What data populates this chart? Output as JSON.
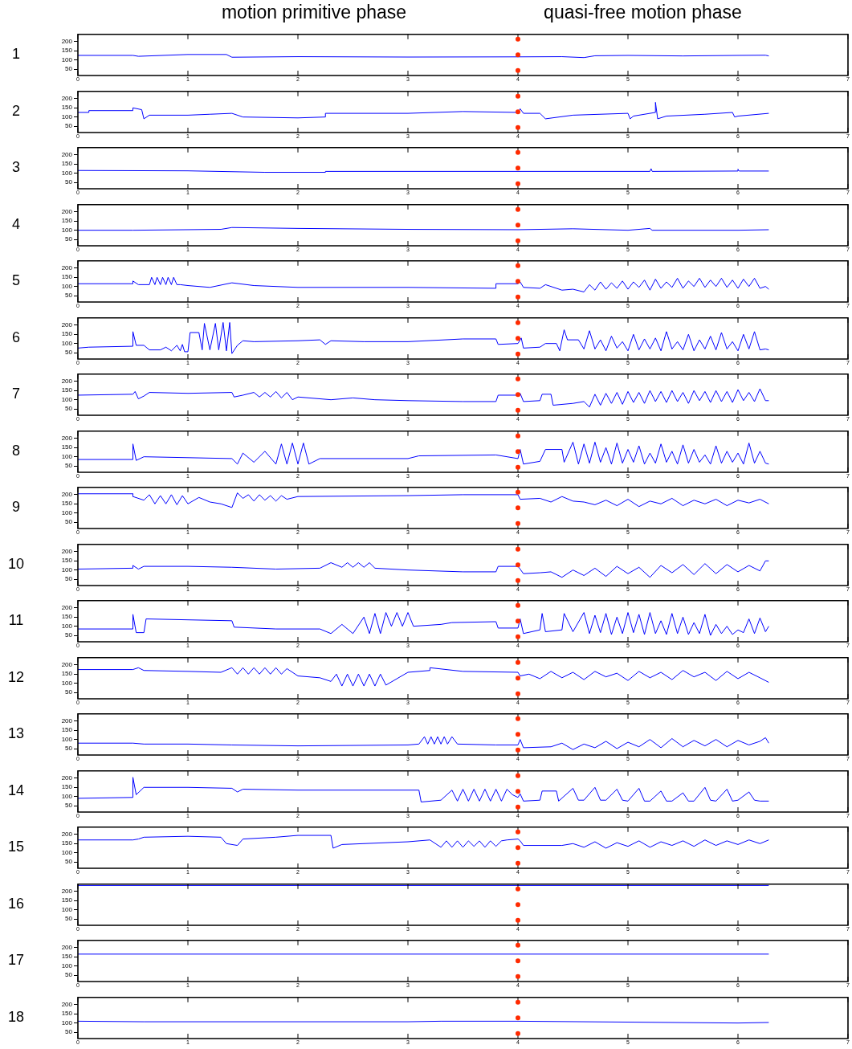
{
  "chart_data": [
    {
      "type": "line",
      "ylabel": "1",
      "annotations": [
        "motion primitive phase",
        "quasi-free motion phase"
      ],
      "color": "#0000ff",
      "x": [
        0,
        0.5,
        0.55,
        1.0,
        1.35,
        1.4,
        2,
        3,
        4,
        4.4,
        4.6,
        4.7,
        5,
        5.5,
        6,
        6.25,
        6.28
      ],
      "values": [
        125,
        125,
        120,
        130,
        130,
        115,
        118,
        116,
        117,
        118,
        113,
        123,
        125,
        122,
        125,
        126,
        122
      ],
      "xlim": [
        0,
        7
      ],
      "ylim": [
        15,
        240
      ],
      "xticks": [
        0,
        1,
        2,
        3,
        4,
        5,
        6,
        7
      ],
      "yticks": [
        50,
        100,
        150,
        200
      ],
      "ref_lines": [
        {
          "axis": "x",
          "value": 4,
          "color": "#ff2a00",
          "line_style": "dotted"
        }
      ]
    },
    {
      "type": "line",
      "ylabel": "2",
      "color": "#0000ff",
      "x": [
        0,
        0.1,
        0.1,
        0.5,
        0.5,
        0.58,
        0.6,
        0.65,
        1.0,
        1.2,
        1.4,
        1.5,
        2,
        2.25,
        2.25,
        3,
        3.5,
        4,
        4.02,
        4.05,
        4.2,
        4.25,
        4.5,
        5,
        5.02,
        5.05,
        5.25,
        5.25,
        5.27,
        5.35,
        5.7,
        5.95,
        5.97,
        6,
        6.28
      ],
      "values": [
        125,
        125,
        135,
        135,
        150,
        140,
        90,
        110,
        110,
        115,
        120,
        100,
        95,
        100,
        120,
        120,
        130,
        125,
        145,
        120,
        120,
        90,
        110,
        120,
        90,
        105,
        125,
        180,
        90,
        105,
        115,
        125,
        100,
        105,
        120
      ],
      "xlim": [
        0,
        7
      ],
      "ylim": [
        15,
        240
      ],
      "xticks": [
        0,
        1,
        2,
        3,
        4,
        5,
        6,
        7
      ],
      "yticks": [
        50,
        100,
        150,
        200
      ],
      "ref_lines": [
        {
          "axis": "x",
          "value": 4,
          "color": "#ff2a00",
          "line_style": "dotted"
        }
      ]
    },
    {
      "type": "line",
      "ylabel": "3",
      "color": "#0000ff",
      "x": [
        0,
        1,
        1.7,
        2.25,
        2.25,
        3,
        4,
        5,
        5.2,
        5.21,
        5.22,
        6,
        6.0,
        6.01,
        6.28
      ],
      "values": [
        115,
        113,
        105,
        105,
        110,
        110,
        110,
        110,
        110,
        125,
        110,
        112,
        122,
        112,
        112
      ],
      "xlim": [
        0,
        7
      ],
      "ylim": [
        15,
        240
      ],
      "xticks": [
        0,
        1,
        2,
        3,
        4,
        5,
        6,
        7
      ],
      "yticks": [
        50,
        100,
        150,
        200
      ],
      "ref_lines": [
        {
          "axis": "x",
          "value": 4,
          "color": "#ff2a00",
          "line_style": "dotted"
        }
      ]
    },
    {
      "type": "line",
      "ylabel": "4",
      "color": "#0000ff",
      "x": [
        0,
        0.5,
        1.3,
        1.4,
        2,
        3,
        4,
        4.5,
        5,
        5.2,
        5.22,
        6,
        6.28
      ],
      "values": [
        100,
        100,
        105,
        115,
        110,
        105,
        103,
        108,
        100,
        110,
        100,
        100,
        103
      ],
      "xlim": [
        0,
        7
      ],
      "ylim": [
        15,
        240
      ],
      "xticks": [
        0,
        1,
        2,
        3,
        4,
        5,
        6,
        7
      ],
      "yticks": [
        50,
        100,
        150,
        200
      ],
      "ref_lines": [
        {
          "axis": "x",
          "value": 4,
          "color": "#ff2a00",
          "line_style": "dotted"
        }
      ]
    },
    {
      "type": "line",
      "ylabel": "5",
      "color": "#0000ff",
      "x": [
        0,
        0.5,
        0.5,
        0.55,
        0.65,
        0.67,
        0.7,
        0.72,
        0.75,
        0.77,
        0.8,
        0.82,
        0.85,
        0.87,
        0.9,
        0.93,
        1.0,
        1.2,
        1.4,
        1.6,
        2,
        3,
        3.8,
        3.8,
        4,
        4.02,
        4.05,
        4.2,
        4.25,
        4.4,
        4.5,
        4.6,
        4.65,
        4.7,
        4.75,
        4.8,
        4.85,
        4.9,
        4.95,
        5.0,
        5.05,
        5.1,
        5.15,
        5.2,
        5.25,
        5.3,
        5.35,
        5.4,
        5.45,
        5.5,
        5.55,
        5.6,
        5.65,
        5.7,
        5.75,
        5.8,
        5.85,
        5.9,
        5.95,
        6.0,
        6.05,
        6.1,
        6.15,
        6.2,
        6.25,
        6.28
      ],
      "values": [
        115,
        115,
        130,
        110,
        110,
        150,
        110,
        150,
        110,
        150,
        110,
        150,
        110,
        150,
        110,
        110,
        105,
        95,
        120,
        105,
        95,
        95,
        90,
        115,
        115,
        125,
        95,
        90,
        110,
        80,
        85,
        70,
        110,
        80,
        125,
        85,
        120,
        90,
        130,
        85,
        125,
        95,
        135,
        80,
        140,
        90,
        125,
        95,
        145,
        90,
        130,
        100,
        145,
        95,
        135,
        100,
        145,
        95,
        135,
        90,
        140,
        100,
        145,
        90,
        100,
        85
      ],
      "xlim": [
        0,
        7
      ],
      "ylim": [
        15,
        240
      ],
      "xticks": [
        0,
        1,
        2,
        3,
        4,
        5,
        6,
        7
      ],
      "yticks": [
        50,
        100,
        150,
        200
      ],
      "ref_lines": [
        {
          "axis": "x",
          "value": 4,
          "color": "#ff2a00",
          "line_style": "dotted"
        }
      ]
    },
    {
      "type": "line",
      "ylabel": "6",
      "color": "#0000ff",
      "x": [
        0,
        0.1,
        0.5,
        0.5,
        0.53,
        0.6,
        0.65,
        0.75,
        0.8,
        0.85,
        0.9,
        0.93,
        0.95,
        0.97,
        1.0,
        1.02,
        1.1,
        1.13,
        1.15,
        1.2,
        1.25,
        1.28,
        1.32,
        1.35,
        1.38,
        1.4,
        1.45,
        1.5,
        1.6,
        2,
        2.2,
        2.25,
        2.3,
        2.6,
        3,
        3.5,
        3.8,
        3.82,
        4,
        4.03,
        4.05,
        4.2,
        4.25,
        4.35,
        4.38,
        4.42,
        4.45,
        4.55,
        4.6,
        4.65,
        4.7,
        4.75,
        4.8,
        4.85,
        4.9,
        4.95,
        5.0,
        5.05,
        5.1,
        5.15,
        5.2,
        5.25,
        5.3,
        5.35,
        5.4,
        5.45,
        5.5,
        5.55,
        5.6,
        5.65,
        5.7,
        5.75,
        5.8,
        5.85,
        5.9,
        5.95,
        6.0,
        6.05,
        6.1,
        6.15,
        6.2,
        6.25,
        6.28
      ],
      "values": [
        75,
        80,
        85,
        165,
        90,
        90,
        65,
        65,
        80,
        60,
        90,
        60,
        95,
        55,
        55,
        160,
        160,
        65,
        210,
        65,
        210,
        65,
        215,
        60,
        215,
        45,
        90,
        115,
        110,
        115,
        120,
        95,
        115,
        110,
        110,
        125,
        125,
        95,
        100,
        130,
        75,
        80,
        100,
        100,
        60,
        175,
        120,
        120,
        70,
        170,
        70,
        120,
        60,
        140,
        75,
        110,
        60,
        150,
        65,
        125,
        70,
        130,
        60,
        165,
        70,
        110,
        65,
        150,
        60,
        120,
        70,
        140,
        65,
        160,
        70,
        110,
        60,
        150,
        70,
        165,
        65,
        70,
        65
      ],
      "xlim": [
        0,
        7
      ],
      "ylim": [
        15,
        240
      ],
      "xticks": [
        0,
        1,
        2,
        3,
        4,
        5,
        6,
        7
      ],
      "yticks": [
        50,
        100,
        150,
        200
      ],
      "ref_lines": [
        {
          "axis": "x",
          "value": 4,
          "color": "#ff2a00",
          "line_style": "dotted"
        }
      ]
    },
    {
      "type": "line",
      "ylabel": "7",
      "color": "#0000ff",
      "x": [
        0,
        0.5,
        0.52,
        0.55,
        0.6,
        0.65,
        1,
        1.4,
        1.42,
        1.5,
        1.6,
        1.65,
        1.7,
        1.75,
        1.8,
        1.85,
        1.9,
        1.95,
        2,
        2.3,
        2.5,
        2.7,
        3,
        3.5,
        3.8,
        3.82,
        4,
        4.02,
        4.05,
        4.2,
        4.22,
        4.3,
        4.32,
        4.5,
        4.6,
        4.65,
        4.7,
        4.75,
        4.8,
        4.85,
        4.9,
        4.95,
        5.0,
        5.05,
        5.1,
        5.15,
        5.2,
        5.25,
        5.3,
        5.35,
        5.4,
        5.45,
        5.5,
        5.55,
        5.6,
        5.65,
        5.7,
        5.75,
        5.8,
        5.85,
        5.9,
        5.95,
        6.0,
        6.05,
        6.1,
        6.15,
        6.2,
        6.25,
        6.28
      ],
      "values": [
        125,
        130,
        145,
        105,
        120,
        140,
        135,
        140,
        115,
        125,
        140,
        115,
        140,
        115,
        145,
        110,
        140,
        100,
        115,
        100,
        110,
        100,
        95,
        90,
        90,
        125,
        125,
        135,
        90,
        95,
        130,
        130,
        70,
        80,
        90,
        60,
        130,
        70,
        135,
        80,
        140,
        75,
        145,
        85,
        140,
        80,
        150,
        90,
        145,
        85,
        150,
        90,
        140,
        80,
        150,
        95,
        145,
        85,
        150,
        90,
        145,
        85,
        155,
        95,
        140,
        90,
        160,
        95,
        95
      ],
      "xlim": [
        0,
        7
      ],
      "ylim": [
        15,
        240
      ],
      "xticks": [
        0,
        1,
        2,
        3,
        4,
        5,
        6,
        7
      ],
      "yticks": [
        50,
        100,
        150,
        200
      ],
      "ref_lines": [
        {
          "axis": "x",
          "value": 4,
          "color": "#ff2a00",
          "line_style": "dotted"
        }
      ]
    },
    {
      "type": "line",
      "ylabel": "8",
      "color": "#0000ff",
      "x": [
        0,
        0.5,
        0.5,
        0.53,
        0.6,
        1,
        1.4,
        1.45,
        1.5,
        1.6,
        1.7,
        1.8,
        1.85,
        1.9,
        1.95,
        2.0,
        2.05,
        2.1,
        2.2,
        3,
        3.1,
        3.8,
        4,
        4.02,
        4.05,
        4.2,
        4.25,
        4.4,
        4.42,
        4.5,
        4.55,
        4.6,
        4.65,
        4.7,
        4.75,
        4.8,
        4.85,
        4.9,
        4.95,
        5.0,
        5.05,
        5.1,
        5.15,
        5.2,
        5.25,
        5.3,
        5.35,
        5.4,
        5.45,
        5.5,
        5.55,
        5.6,
        5.65,
        5.7,
        5.75,
        5.8,
        5.85,
        5.9,
        5.95,
        6.0,
        6.05,
        6.1,
        6.15,
        6.2,
        6.25,
        6.28
      ],
      "values": [
        85,
        85,
        170,
        80,
        100,
        95,
        90,
        60,
        120,
        70,
        130,
        60,
        170,
        60,
        175,
        60,
        175,
        60,
        90,
        90,
        105,
        110,
        90,
        140,
        60,
        75,
        140,
        140,
        70,
        180,
        60,
        170,
        65,
        180,
        70,
        150,
        60,
        175,
        65,
        140,
        70,
        160,
        60,
        120,
        65,
        170,
        70,
        130,
        60,
        165,
        65,
        140,
        70,
        110,
        60,
        160,
        65,
        130,
        70,
        120,
        60,
        175,
        65,
        130,
        65,
        60
      ],
      "xlim": [
        0,
        7
      ],
      "ylim": [
        15,
        240
      ],
      "xticks": [
        0,
        1,
        2,
        3,
        4,
        5,
        6,
        7
      ],
      "yticks": [
        50,
        100,
        150,
        200
      ],
      "ref_lines": [
        {
          "axis": "x",
          "value": 4,
          "color": "#ff2a00",
          "line_style": "dotted"
        }
      ]
    },
    {
      "type": "line",
      "ylabel": "9",
      "color": "#0000ff",
      "x": [
        0,
        0.5,
        0.5,
        0.6,
        0.65,
        0.7,
        0.75,
        0.8,
        0.85,
        0.9,
        0.95,
        1.0,
        1.1,
        1.2,
        1.3,
        1.4,
        1.45,
        1.5,
        1.55,
        1.6,
        1.65,
        1.7,
        1.75,
        1.8,
        1.85,
        1.9,
        2,
        3,
        3.5,
        4,
        4.02,
        4.2,
        4.3,
        4.4,
        4.5,
        4.6,
        4.7,
        4.8,
        4.9,
        5.0,
        5.1,
        5.2,
        5.3,
        5.4,
        5.5,
        5.6,
        5.7,
        5.8,
        5.9,
        6.0,
        6.1,
        6.2,
        6.28
      ],
      "values": [
        205,
        205,
        190,
        170,
        200,
        150,
        195,
        150,
        200,
        145,
        195,
        150,
        185,
        160,
        150,
        130,
        210,
        180,
        200,
        165,
        200,
        170,
        195,
        165,
        195,
        175,
        190,
        195,
        200,
        200,
        175,
        180,
        160,
        190,
        165,
        160,
        145,
        170,
        140,
        175,
        135,
        165,
        150,
        180,
        140,
        170,
        150,
        175,
        140,
        170,
        155,
        175,
        150
      ],
      "xlim": [
        0,
        7
      ],
      "ylim": [
        15,
        240
      ],
      "xticks": [
        0,
        1,
        2,
        3,
        4,
        5,
        6,
        7
      ],
      "yticks": [
        50,
        100,
        150,
        200
      ],
      "ref_lines": [
        {
          "axis": "x",
          "value": 4,
          "color": "#ff2a00",
          "line_style": "dotted"
        }
      ]
    },
    {
      "type": "line",
      "ylabel": "10",
      "color": "#0000ff",
      "x": [
        0,
        0.5,
        0.5,
        0.55,
        0.6,
        1,
        1.4,
        1.8,
        2.2,
        2.3,
        2.4,
        2.45,
        2.5,
        2.55,
        2.6,
        2.65,
        2.7,
        3,
        3.5,
        3.8,
        3.82,
        4,
        4.02,
        4.05,
        4.2,
        4.3,
        4.4,
        4.5,
        4.6,
        4.7,
        4.8,
        4.9,
        5.0,
        5.1,
        5.2,
        5.3,
        5.4,
        5.5,
        5.6,
        5.7,
        5.8,
        5.9,
        6.0,
        6.1,
        6.2,
        6.25,
        6.28
      ],
      "values": [
        105,
        110,
        125,
        105,
        120,
        120,
        115,
        105,
        110,
        140,
        115,
        140,
        115,
        140,
        115,
        140,
        110,
        100,
        90,
        90,
        120,
        120,
        105,
        80,
        85,
        90,
        60,
        100,
        70,
        110,
        65,
        120,
        80,
        115,
        60,
        125,
        85,
        130,
        75,
        135,
        80,
        130,
        90,
        125,
        95,
        150,
        150
      ],
      "xlim": [
        0,
        7
      ],
      "ylim": [
        15,
        240
      ],
      "xticks": [
        0,
        1,
        2,
        3,
        4,
        5,
        6,
        7
      ],
      "yticks": [
        50,
        100,
        150,
        200
      ],
      "ref_lines": [
        {
          "axis": "x",
          "value": 4,
          "color": "#ff2a00",
          "line_style": "dotted"
        }
      ]
    },
    {
      "type": "line",
      "ylabel": "11",
      "color": "#0000ff",
      "x": [
        0,
        0.5,
        0.5,
        0.53,
        0.6,
        0.62,
        1,
        1.4,
        1.42,
        1.8,
        2.2,
        2.3,
        2.4,
        2.5,
        2.6,
        2.65,
        2.7,
        2.75,
        2.8,
        2.85,
        2.9,
        2.95,
        3,
        3.05,
        3.3,
        3.4,
        3.8,
        3.82,
        4,
        4.02,
        4.05,
        4.2,
        4.22,
        4.25,
        4.4,
        4.42,
        4.5,
        4.6,
        4.65,
        4.7,
        4.75,
        4.8,
        4.85,
        4.9,
        4.95,
        5.0,
        5.05,
        5.1,
        5.15,
        5.2,
        5.25,
        5.3,
        5.35,
        5.4,
        5.45,
        5.5,
        5.55,
        5.6,
        5.65,
        5.7,
        5.75,
        5.8,
        5.85,
        5.9,
        5.95,
        6.0,
        6.05,
        6.1,
        6.15,
        6.2,
        6.25,
        6.28
      ],
      "values": [
        85,
        85,
        165,
        65,
        65,
        140,
        135,
        130,
        95,
        85,
        85,
        60,
        110,
        60,
        150,
        60,
        170,
        60,
        175,
        100,
        175,
        100,
        175,
        100,
        110,
        120,
        125,
        90,
        90,
        140,
        60,
        80,
        170,
        70,
        80,
        170,
        70,
        175,
        60,
        160,
        65,
        170,
        55,
        150,
        60,
        175,
        65,
        165,
        55,
        175,
        60,
        130,
        55,
        170,
        60,
        150,
        55,
        120,
        60,
        165,
        50,
        110,
        60,
        100,
        55,
        80,
        65,
        140,
        60,
        145,
        70,
        100
      ],
      "xlim": [
        0,
        7
      ],
      "ylim": [
        15,
        240
      ],
      "xticks": [
        0,
        1,
        2,
        3,
        4,
        5,
        6,
        7
      ],
      "yticks": [
        50,
        100,
        150,
        200
      ],
      "ref_lines": [
        {
          "axis": "x",
          "value": 4,
          "color": "#ff2a00",
          "line_style": "dotted"
        }
      ]
    },
    {
      "type": "line",
      "ylabel": "12",
      "color": "#0000ff",
      "x": [
        0,
        0.5,
        0.55,
        0.6,
        1,
        1.3,
        1.4,
        1.45,
        1.5,
        1.55,
        1.6,
        1.65,
        1.7,
        1.75,
        1.8,
        1.85,
        1.9,
        2,
        2.2,
        2.3,
        2.35,
        2.4,
        2.45,
        2.5,
        2.55,
        2.6,
        2.65,
        2.7,
        2.75,
        2.8,
        3,
        3.2,
        3.2,
        3.5,
        4,
        4.02,
        4.1,
        4.2,
        4.3,
        4.4,
        4.5,
        4.6,
        4.7,
        4.8,
        4.9,
        5.0,
        5.1,
        5.2,
        5.3,
        5.4,
        5.5,
        5.6,
        5.7,
        5.8,
        5.9,
        6.0,
        6.1,
        6.2,
        6.28
      ],
      "values": [
        175,
        175,
        185,
        170,
        165,
        160,
        185,
        150,
        185,
        150,
        185,
        150,
        185,
        150,
        185,
        150,
        180,
        140,
        130,
        110,
        150,
        85,
        150,
        85,
        150,
        85,
        150,
        85,
        150,
        90,
        160,
        170,
        185,
        165,
        160,
        140,
        150,
        125,
        165,
        130,
        160,
        120,
        165,
        135,
        155,
        115,
        165,
        130,
        160,
        120,
        170,
        135,
        160,
        115,
        165,
        125,
        160,
        130,
        105
      ],
      "xlim": [
        0,
        7
      ],
      "ylim": [
        15,
        240
      ],
      "xticks": [
        0,
        1,
        2,
        3,
        4,
        5,
        6,
        7
      ],
      "yticks": [
        50,
        100,
        150,
        200
      ],
      "ref_lines": [
        {
          "axis": "x",
          "value": 4,
          "color": "#ff2a00",
          "line_style": "dotted"
        }
      ]
    },
    {
      "type": "line",
      "ylabel": "13",
      "color": "#0000ff",
      "x": [
        0,
        0.5,
        0.6,
        1,
        1.4,
        2,
        3,
        3.1,
        3.15,
        3.18,
        3.21,
        3.24,
        3.27,
        3.3,
        3.33,
        3.36,
        3.4,
        3.45,
        3.8,
        4,
        4.02,
        4.05,
        4.3,
        4.4,
        4.5,
        4.6,
        4.7,
        4.8,
        4.9,
        5.0,
        5.1,
        5.2,
        5.3,
        5.4,
        5.5,
        5.6,
        5.7,
        5.8,
        5.9,
        6.0,
        6.1,
        6.2,
        6.25,
        6.28
      ],
      "values": [
        80,
        80,
        75,
        75,
        70,
        65,
        70,
        75,
        115,
        75,
        115,
        75,
        115,
        75,
        115,
        75,
        115,
        75,
        70,
        70,
        100,
        55,
        60,
        80,
        45,
        75,
        55,
        90,
        50,
        85,
        60,
        100,
        55,
        105,
        60,
        95,
        65,
        100,
        60,
        95,
        70,
        90,
        110,
        80
      ],
      "xlim": [
        0,
        7
      ],
      "ylim": [
        15,
        240
      ],
      "xticks": [
        0,
        1,
        2,
        3,
        4,
        5,
        6,
        7
      ],
      "yticks": [
        50,
        100,
        150,
        200
      ],
      "ref_lines": [
        {
          "axis": "x",
          "value": 4,
          "color": "#ff2a00",
          "line_style": "dotted"
        }
      ]
    },
    {
      "type": "line",
      "ylabel": "14",
      "color": "#0000ff",
      "x": [
        0,
        0.5,
        0.5,
        0.53,
        0.6,
        1,
        1.4,
        1.45,
        1.5,
        2,
        3,
        3.1,
        3.12,
        3.3,
        3.4,
        3.45,
        3.5,
        3.55,
        3.6,
        3.65,
        3.7,
        3.75,
        3.8,
        3.85,
        3.9,
        3.95,
        4,
        4.02,
        4.05,
        4.2,
        4.22,
        4.35,
        4.37,
        4.5,
        4.55,
        4.6,
        4.7,
        4.75,
        4.8,
        4.9,
        4.95,
        5.0,
        5.1,
        5.15,
        5.2,
        5.3,
        5.35,
        5.4,
        5.5,
        5.55,
        5.6,
        5.7,
        5.75,
        5.8,
        5.9,
        5.95,
        6.0,
        6.1,
        6.15,
        6.2,
        6.28
      ],
      "values": [
        90,
        95,
        205,
        110,
        150,
        150,
        145,
        125,
        140,
        135,
        135,
        135,
        70,
        80,
        135,
        75,
        140,
        75,
        140,
        75,
        140,
        75,
        140,
        75,
        140,
        110,
        95,
        115,
        75,
        80,
        130,
        130,
        75,
        145,
        80,
        80,
        150,
        80,
        80,
        140,
        80,
        75,
        145,
        75,
        75,
        130,
        75,
        75,
        120,
        75,
        75,
        150,
        80,
        75,
        140,
        75,
        80,
        125,
        80,
        75,
        75
      ],
      "xlim": [
        0,
        7
      ],
      "ylim": [
        15,
        240
      ],
      "xticks": [
        0,
        1,
        2,
        3,
        4,
        5,
        6,
        7
      ],
      "yticks": [
        50,
        100,
        150,
        200
      ],
      "ref_lines": [
        {
          "axis": "x",
          "value": 4,
          "color": "#ff2a00",
          "line_style": "dotted"
        }
      ]
    },
    {
      "type": "line",
      "ylabel": "15",
      "color": "#0000ff",
      "x": [
        0,
        0.5,
        0.55,
        0.6,
        1,
        1.3,
        1.35,
        1.45,
        1.5,
        1.8,
        2.0,
        2.3,
        2.32,
        2.4,
        3,
        3.2,
        3.3,
        3.35,
        3.4,
        3.45,
        3.5,
        3.55,
        3.6,
        3.65,
        3.7,
        3.75,
        3.8,
        3.85,
        3.9,
        4,
        4.02,
        4.05,
        4.4,
        4.5,
        4.6,
        4.7,
        4.8,
        4.9,
        5.0,
        5.1,
        5.2,
        5.3,
        5.4,
        5.5,
        5.6,
        5.7,
        5.8,
        5.9,
        6.0,
        6.1,
        6.2,
        6.28
      ],
      "values": [
        170,
        170,
        175,
        185,
        190,
        185,
        150,
        140,
        175,
        185,
        195,
        195,
        125,
        145,
        160,
        170,
        130,
        165,
        130,
        165,
        130,
        165,
        135,
        165,
        130,
        165,
        135,
        165,
        170,
        175,
        165,
        140,
        140,
        150,
        130,
        160,
        125,
        155,
        135,
        165,
        130,
        160,
        140,
        165,
        135,
        170,
        140,
        165,
        145,
        170,
        150,
        170
      ],
      "xlim": [
        0,
        7
      ],
      "ylim": [
        15,
        240
      ],
      "xticks": [
        0,
        1,
        2,
        3,
        4,
        5,
        6,
        7
      ],
      "yticks": [
        50,
        100,
        150,
        200
      ],
      "ref_lines": [
        {
          "axis": "x",
          "value": 4,
          "color": "#ff2a00",
          "line_style": "dotted"
        }
      ]
    },
    {
      "type": "line",
      "ylabel": "16",
      "color": "#0000ff",
      "x": [
        0,
        1,
        2,
        3,
        4,
        5,
        6,
        6.28
      ],
      "values": [
        233,
        233,
        233,
        233,
        233,
        233,
        233,
        233
      ],
      "xlim": [
        0,
        7
      ],
      "ylim": [
        15,
        240
      ],
      "xticks": [
        0,
        1,
        2,
        3,
        4,
        5,
        6,
        7
      ],
      "yticks": [
        50,
        100,
        150,
        200
      ],
      "ref_lines": [
        {
          "axis": "x",
          "value": 4,
          "color": "#ff2a00",
          "line_style": "dotted"
        }
      ]
    },
    {
      "type": "line",
      "ylabel": "17",
      "color": "#0000ff",
      "x": [
        0,
        1,
        2,
        3,
        4,
        5,
        6,
        6.28
      ],
      "values": [
        165,
        165,
        165,
        165,
        165,
        165,
        165,
        165
      ],
      "xlim": [
        0,
        7
      ],
      "ylim": [
        15,
        240
      ],
      "xticks": [
        0,
        1,
        2,
        3,
        4,
        5,
        6,
        7
      ],
      "yticks": [
        50,
        100,
        150,
        200
      ],
      "ref_lines": [
        {
          "axis": "x",
          "value": 4,
          "color": "#ff2a00",
          "line_style": "dotted"
        }
      ]
    },
    {
      "type": "line",
      "ylabel": "18",
      "color": "#0000ff",
      "x": [
        0,
        0.6,
        1,
        2,
        3,
        3.3,
        4,
        5,
        6,
        6.28
      ],
      "values": [
        110,
        107,
        107,
        107,
        107,
        110,
        110,
        105,
        100,
        103
      ],
      "xlim": [
        0,
        7
      ],
      "ylim": [
        15,
        240
      ],
      "xticks": [
        0,
        1,
        2,
        3,
        4,
        5,
        6,
        7
      ],
      "yticks": [
        50,
        100,
        150,
        200
      ],
      "ref_lines": [
        {
          "axis": "x",
          "value": 4,
          "color": "#ff2a00",
          "line_style": "dotted"
        }
      ]
    }
  ]
}
